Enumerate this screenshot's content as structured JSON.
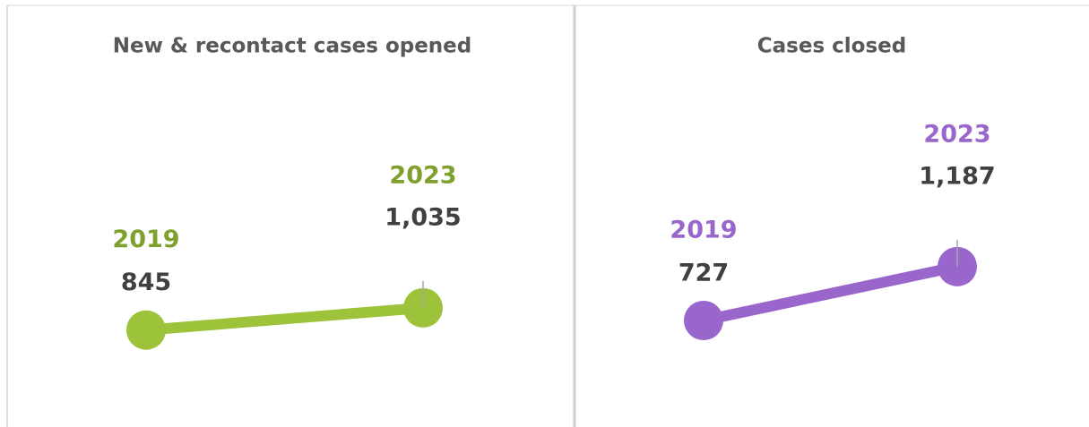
{
  "chart_data": [
    {
      "type": "line",
      "title": "New & recontact cases opened",
      "categories": [
        "2019",
        "2023"
      ],
      "series": [
        {
          "color": "#9dc33b",
          "values": [
            845,
            1035
          ],
          "value_labels": [
            "845",
            "1,035"
          ]
        }
      ],
      "label_color": "#7ea02c",
      "ylim": [
        300,
        2900
      ]
    },
    {
      "type": "line",
      "title": "Cases closed",
      "categories": [
        "2019",
        "2023"
      ],
      "series": [
        {
          "color": "#9966cc",
          "values": [
            727,
            1187
          ],
          "value_labels": [
            "727",
            "1,187"
          ]
        }
      ],
      "label_color": "#9966cc",
      "ylim": [
        100,
        2700
      ]
    }
  ]
}
